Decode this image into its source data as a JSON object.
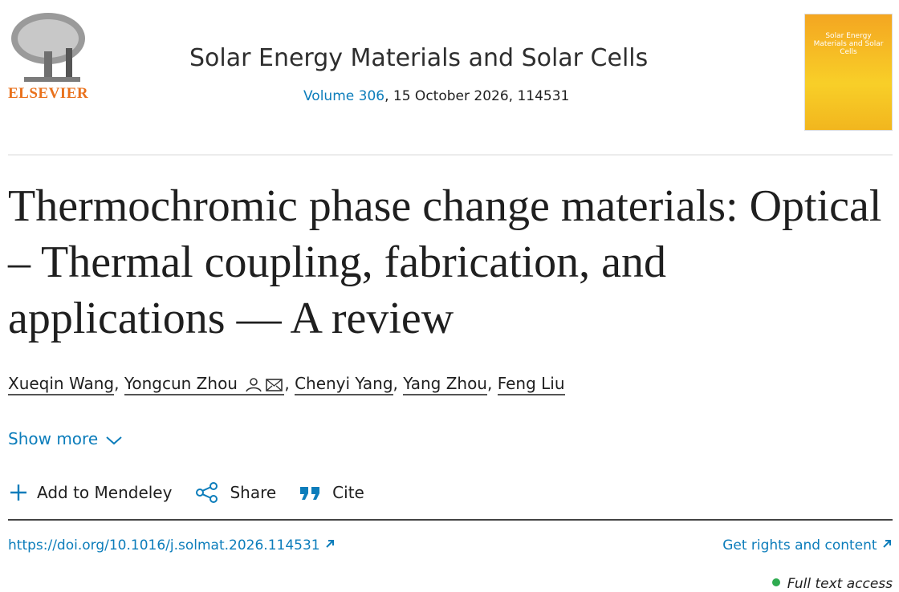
{
  "header": {
    "publisher": "ELSEVIER",
    "journal": "Solar Energy Materials and Solar Cells",
    "volume_link": "Volume 306",
    "issue_info": ", 15 October 2026, 114531"
  },
  "cover": {
    "title": "Solar Energy Materials and Solar Cells"
  },
  "article": {
    "title": "Thermochromic phase change materials: Optical – Thermal coupling, fabrication, and applications — A review",
    "authors": [
      "Xueqin Wang",
      "Yongcun Zhou",
      "Chenyi Yang",
      "Yang Zhou",
      "Feng Liu"
    ],
    "author_separator": ","
  },
  "show_more": "Show more",
  "actions": [
    "Add to Mendeley",
    "Share",
    "Cite"
  ],
  "doi": "https://doi.org/10.1016/j.solmat.2026.114531",
  "rights": "Get rights and content",
  "access": "Full text access"
}
